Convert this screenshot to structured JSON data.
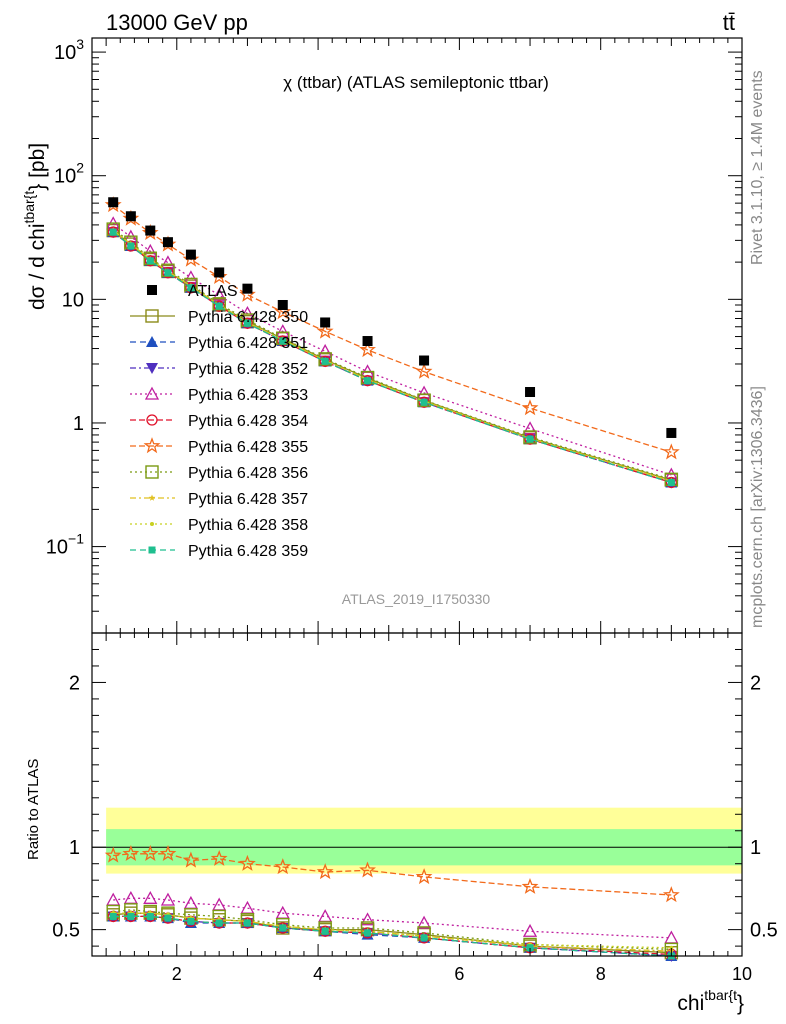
{
  "header": {
    "left": "13000 GeV pp",
    "right": "tt̄"
  },
  "plot_title": "χ (ttbar) (ATLAS semileptonic ttbar)",
  "watermark": "ATLAS_2019_I1750330",
  "side_labels": {
    "rivet": "Rivet 3.1.10, ≥ 1.4M events",
    "mcplots": "mcplots.cern.ch [arXiv:1306.3436]"
  },
  "chart_data": [
    {
      "type": "line",
      "panel": "main",
      "ylabel": "dσ / d chi^{tbar{t}} [pb]",
      "ylabel_main": "dσ / d chi",
      "ylabel_sup": "tbar{t",
      "ylabel_tail": "} [pb]",
      "yscale": "log",
      "ylim": [
        0.02,
        1300
      ],
      "xlim": [
        0.8,
        10
      ],
      "ytick_labels": [
        "10^3",
        "10^2",
        "10",
        "1",
        "10^-1"
      ],
      "x": [
        1.1,
        1.35,
        1.625,
        1.875,
        2.2,
        2.6,
        3.0,
        3.5,
        4.1,
        4.7,
        5.5,
        7.0,
        9.0
      ],
      "data": {
        "name": "ATLAS",
        "values": [
          61,
          47,
          36,
          29,
          23,
          16.5,
          12.2,
          9.0,
          6.5,
          4.6,
          3.2,
          1.78,
          0.83
        ]
      },
      "series": [
        {
          "name": "Pythia 6.428 350",
          "color": "#8b8b1a",
          "marker": "open-square",
          "dash": "solid",
          "values": [
            36,
            28,
            21,
            16.8,
            12.8,
            9.0,
            6.6,
            4.8,
            3.25,
            2.3,
            1.52,
            0.76,
            0.345
          ]
        },
        {
          "name": "Pythia 6.428 351",
          "color": "#1f4fbf",
          "marker": "triangle-up",
          "dash": "6,4",
          "values": [
            35,
            27,
            20.5,
            16.4,
            12.4,
            8.8,
            6.4,
            4.6,
            3.15,
            2.2,
            1.47,
            0.74,
            0.33
          ]
        },
        {
          "name": "Pythia 6.428 352",
          "color": "#4f2fbf",
          "marker": "triangle-down",
          "dash": "6,3,2,3",
          "values": [
            35,
            27,
            20.5,
            16.4,
            12.5,
            8.8,
            6.4,
            4.6,
            3.15,
            2.2,
            1.47,
            0.74,
            0.33
          ]
        },
        {
          "name": "Pythia 6.428 353",
          "color": "#bf1f9f",
          "marker": "open-triangle",
          "dash": "2,3",
          "values": [
            41,
            32,
            24.5,
            19.8,
            15,
            10.8,
            7.7,
            5.5,
            3.8,
            2.6,
            1.75,
            0.9,
            0.38
          ]
        },
        {
          "name": "Pythia 6.428 354",
          "color": "#e0102a",
          "marker": "open-circle",
          "dash": "6,3",
          "values": [
            35,
            27,
            20.5,
            16.4,
            12.4,
            8.8,
            6.4,
            4.6,
            3.15,
            2.2,
            1.47,
            0.74,
            0.33
          ]
        },
        {
          "name": "Pythia 6.428 355",
          "color": "#f26a1b",
          "marker": "open-star",
          "dash": "6,3",
          "values": [
            58,
            45,
            34.5,
            27.8,
            21,
            15.2,
            10.9,
            7.9,
            5.5,
            3.9,
            2.6,
            1.32,
            0.58
          ]
        },
        {
          "name": "Pythia 6.428 356",
          "color": "#7a9a12",
          "marker": "open-square",
          "dash": "2,3",
          "values": [
            37,
            29,
            21.5,
            17.2,
            13.2,
            9.2,
            6.8,
            4.85,
            3.3,
            2.33,
            1.53,
            0.77,
            0.35
          ]
        },
        {
          "name": "Pythia 6.428 357",
          "color": "#e0c020",
          "marker": "small-star",
          "dash": "6,3,2,3",
          "values": [
            36,
            28,
            21,
            16.8,
            12.8,
            9.0,
            6.5,
            4.7,
            3.2,
            2.25,
            1.5,
            0.75,
            0.34
          ]
        },
        {
          "name": "Pythia 6.428 358",
          "color": "#c8d020",
          "marker": "small-dot",
          "dash": "2,3",
          "values": [
            36,
            28,
            21,
            16.8,
            12.8,
            9.0,
            6.5,
            4.7,
            3.2,
            2.25,
            1.5,
            0.75,
            0.34
          ]
        },
        {
          "name": "Pythia 6.428 359",
          "color": "#1fbf8f",
          "marker": "filled-square",
          "dash": "6,4",
          "values": [
            35,
            27,
            20.5,
            16.4,
            12.4,
            8.8,
            6.4,
            4.6,
            3.15,
            2.2,
            1.47,
            0.74,
            0.33
          ]
        }
      ]
    },
    {
      "type": "line",
      "panel": "ratio",
      "ylabel": "Ratio to ATLAS",
      "xlabel": "chi^{tbar{t}}",
      "xlabel_main": "chi",
      "xlabel_sup": "tbar{t",
      "xlabel_tail": "}",
      "ylim": [
        0.34,
        2.3
      ],
      "xlim": [
        0.8,
        10
      ],
      "xtick_labels": [
        "2",
        "4",
        "6",
        "8",
        "10"
      ],
      "ytick_labels": [
        "2",
        "1",
        "0.5"
      ],
      "band_green": [
        0.89,
        1.11
      ],
      "band_yellow": [
        0.84,
        1.24
      ],
      "x": [
        1.1,
        1.35,
        1.625,
        1.875,
        2.2,
        2.6,
        3.0,
        3.5,
        4.1,
        4.7,
        5.5,
        7.0,
        9.0
      ],
      "series": [
        {
          "name": "Pythia 6.428 350",
          "values": [
            0.59,
            0.6,
            0.6,
            0.59,
            0.57,
            0.56,
            0.55,
            0.51,
            0.5,
            0.5,
            0.47,
            0.4,
            0.36
          ]
        },
        {
          "name": "Pythia 6.428 351",
          "values": [
            0.58,
            0.58,
            0.58,
            0.57,
            0.54,
            0.54,
            0.54,
            0.51,
            0.49,
            0.47,
            0.45,
            0.39,
            0.34
          ]
        },
        {
          "name": "Pythia 6.428 352",
          "values": [
            0.58,
            0.58,
            0.58,
            0.57,
            0.55,
            0.54,
            0.54,
            0.51,
            0.49,
            0.48,
            0.45,
            0.39,
            0.34
          ]
        },
        {
          "name": "Pythia 6.428 353",
          "values": [
            0.68,
            0.69,
            0.69,
            0.68,
            0.66,
            0.65,
            0.63,
            0.6,
            0.58,
            0.56,
            0.54,
            0.49,
            0.45
          ]
        },
        {
          "name": "Pythia 6.428 354",
          "values": [
            0.58,
            0.58,
            0.58,
            0.57,
            0.55,
            0.54,
            0.54,
            0.51,
            0.49,
            0.48,
            0.45,
            0.39,
            0.35
          ]
        },
        {
          "name": "Pythia 6.428 355",
          "values": [
            0.95,
            0.96,
            0.96,
            0.96,
            0.92,
            0.93,
            0.9,
            0.88,
            0.85,
            0.86,
            0.82,
            0.76,
            0.71
          ]
        },
        {
          "name": "Pythia 6.428 356",
          "values": [
            0.61,
            0.62,
            0.61,
            0.6,
            0.59,
            0.58,
            0.56,
            0.53,
            0.51,
            0.51,
            0.48,
            0.41,
            0.38
          ]
        },
        {
          "name": "Pythia 6.428 357",
          "values": [
            0.6,
            0.6,
            0.6,
            0.59,
            0.57,
            0.56,
            0.55,
            0.52,
            0.5,
            0.49,
            0.46,
            0.4,
            0.37
          ]
        },
        {
          "name": "Pythia 6.428 358",
          "values": [
            0.6,
            0.6,
            0.6,
            0.59,
            0.57,
            0.56,
            0.55,
            0.52,
            0.5,
            0.49,
            0.46,
            0.41,
            0.39
          ]
        },
        {
          "name": "Pythia 6.428 359",
          "values": [
            0.58,
            0.58,
            0.58,
            0.57,
            0.55,
            0.54,
            0.54,
            0.51,
            0.49,
            0.48,
            0.45,
            0.39,
            0.34
          ]
        }
      ]
    }
  ]
}
